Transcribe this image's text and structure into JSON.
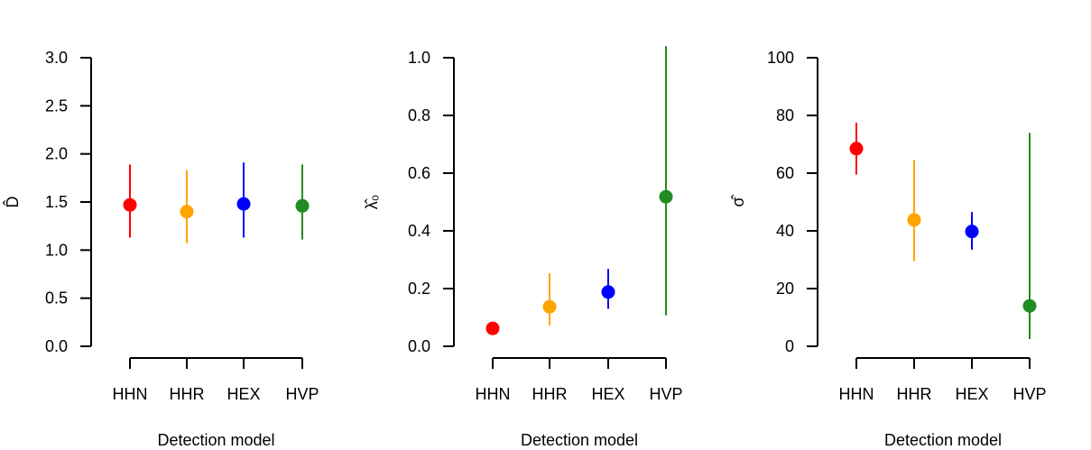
{
  "colors": {
    "HHN": "#ff0000",
    "HHR": "#ffa500",
    "HEX": "#0000ff",
    "HVP": "#228b22"
  },
  "chart_data": [
    {
      "type": "scatter",
      "categories": [
        "HHN",
        "HHR",
        "HEX",
        "HVP"
      ],
      "estimates": [
        1.47,
        1.4,
        1.48,
        1.46
      ],
      "lower": [
        1.13,
        1.07,
        1.13,
        1.11
      ],
      "upper": [
        1.89,
        1.83,
        1.91,
        1.89
      ],
      "xlabel": "Detection model",
      "ylabel": "D̂",
      "ylim": [
        0,
        3.0
      ],
      "yticks": [
        0.0,
        0.5,
        1.0,
        1.5,
        2.0,
        2.5,
        3.0
      ],
      "ytick_labels": [
        "0.0",
        "0.5",
        "1.0",
        "1.5",
        "2.0",
        "2.5",
        "3.0"
      ],
      "grid": false
    },
    {
      "type": "scatter",
      "categories": [
        "HHN",
        "HHR",
        "HEX",
        "HVP"
      ],
      "estimates": [
        0.062,
        0.137,
        0.188,
        0.518
      ],
      "lower": [
        0.052,
        0.072,
        0.13,
        0.107
      ],
      "upper": [
        0.075,
        0.253,
        0.268,
        1.04
      ],
      "xlabel": "Detection model",
      "ylabel": "λ̂₀",
      "ylim": [
        0,
        1.0
      ],
      "yticks": [
        0.0,
        0.2,
        0.4,
        0.6,
        0.8,
        1.0
      ],
      "ytick_labels": [
        "0.0",
        "0.2",
        "0.4",
        "0.6",
        "0.8",
        "1.0"
      ],
      "grid": false
    },
    {
      "type": "scatter",
      "categories": [
        "HHN",
        "HHR",
        "HEX",
        "HVP"
      ],
      "estimates": [
        68.5,
        43.8,
        39.8,
        14.0
      ],
      "lower": [
        59.5,
        29.5,
        33.5,
        2.5
      ],
      "upper": [
        77.5,
        64.5,
        46.5,
        74.0
      ],
      "xlabel": "Detection model",
      "ylabel": "σ̂",
      "ylim": [
        0,
        100
      ],
      "yticks": [
        0,
        20,
        40,
        60,
        80,
        100
      ],
      "ytick_labels": [
        "0",
        "20",
        "40",
        "60",
        "80",
        "100"
      ],
      "grid": false
    }
  ]
}
